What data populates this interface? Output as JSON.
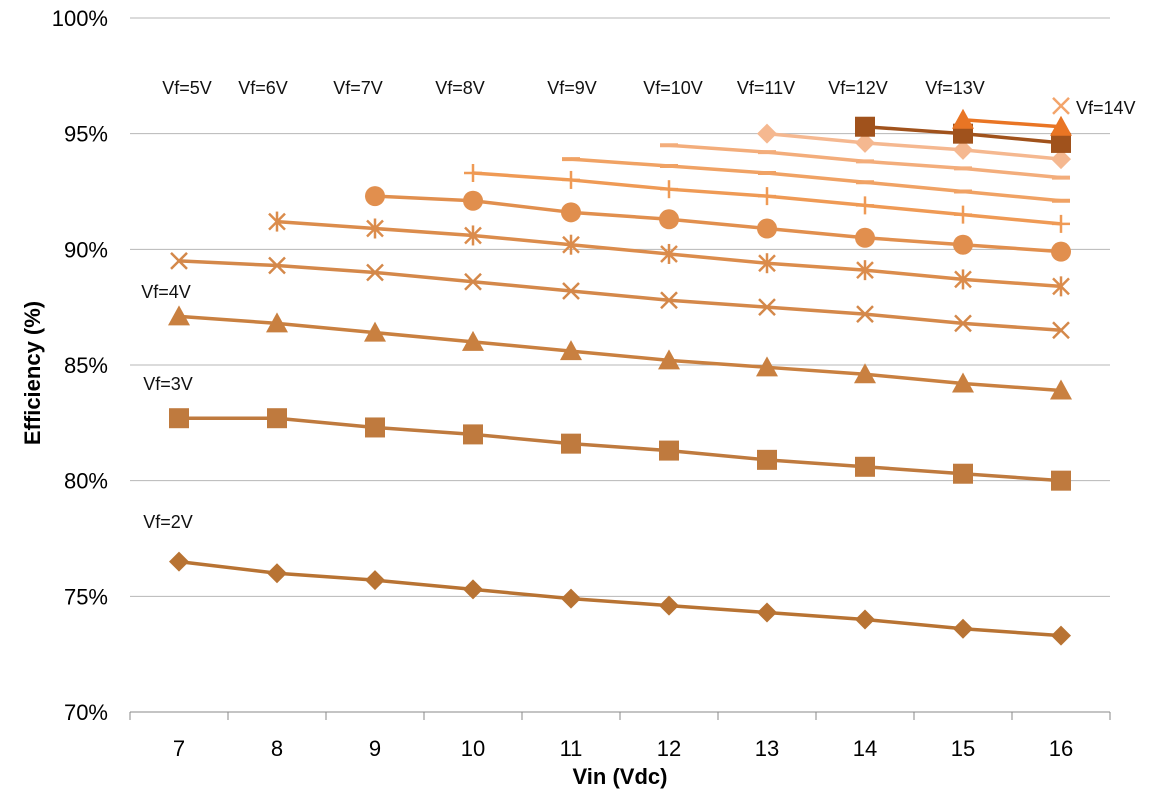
{
  "chart_data": {
    "type": "line",
    "title": "",
    "xlabel": "Vin (Vdc)",
    "ylabel": "Efficiency (%)",
    "x_ticks": [
      "7",
      "8",
      "9",
      "10",
      "11",
      "12",
      "13",
      "14",
      "15",
      "16"
    ],
    "y_ticks": [
      "70%",
      "75%",
      "80%",
      "85%",
      "90%",
      "95%",
      "100%"
    ],
    "xlim": [
      6.5,
      16.5
    ],
    "ylim": [
      70,
      100
    ],
    "grid": "horizontal",
    "legend": "none (series labelled directly on chart)",
    "series": [
      {
        "name": "Vf=2V",
        "marker": "diamond",
        "color": "#b87333",
        "x": [
          7,
          8,
          9,
          10,
          11,
          12,
          13,
          14,
          15,
          16
        ],
        "y": [
          76.5,
          76.0,
          75.7,
          75.3,
          74.9,
          74.6,
          74.3,
          74.0,
          73.6,
          73.3
        ]
      },
      {
        "name": "Vf=3V",
        "marker": "square",
        "color": "#bf7a3e",
        "x": [
          7,
          8,
          9,
          10,
          11,
          12,
          13,
          14,
          15,
          16
        ],
        "y": [
          82.7,
          82.7,
          82.3,
          82.0,
          81.6,
          81.3,
          80.9,
          80.6,
          80.3,
          80.0
        ]
      },
      {
        "name": "Vf=4V",
        "marker": "triangle",
        "color": "#c98040",
        "x": [
          7,
          8,
          9,
          10,
          11,
          12,
          13,
          14,
          15,
          16
        ],
        "y": [
          87.1,
          86.8,
          86.4,
          86.0,
          85.6,
          85.2,
          84.9,
          84.6,
          84.2,
          83.9
        ]
      },
      {
        "name": "Vf=5V",
        "marker": "x",
        "color": "#d4884a",
        "x": [
          7,
          8,
          9,
          10,
          11,
          12,
          13,
          14,
          15,
          16
        ],
        "y": [
          89.5,
          89.3,
          89.0,
          88.6,
          88.2,
          87.8,
          87.5,
          87.2,
          86.8,
          86.5
        ]
      },
      {
        "name": "Vf=6V",
        "marker": "star",
        "color": "#db8c4c",
        "x": [
          8,
          9,
          10,
          11,
          12,
          13,
          14,
          15,
          16
        ],
        "y": [
          91.2,
          90.9,
          90.6,
          90.2,
          89.8,
          89.4,
          89.1,
          88.7,
          88.4
        ]
      },
      {
        "name": "Vf=7V",
        "marker": "circle",
        "color": "#e18f4e",
        "x": [
          9,
          10,
          11,
          12,
          13,
          14,
          15,
          16
        ],
        "y": [
          92.3,
          92.1,
          91.6,
          91.3,
          90.9,
          90.5,
          90.2,
          89.9
        ]
      },
      {
        "name": "Vf=8V",
        "marker": "plus",
        "color": "#ef9a55",
        "x": [
          10,
          11,
          12,
          13,
          14,
          15,
          16
        ],
        "y": [
          93.3,
          93.0,
          92.6,
          92.3,
          91.9,
          91.5,
          91.1
        ]
      },
      {
        "name": "Vf=9V",
        "marker": "dash",
        "color": "#f0a264",
        "x": [
          11,
          12,
          13,
          14,
          15,
          16
        ],
        "y": [
          93.9,
          93.6,
          93.3,
          92.9,
          92.5,
          92.1
        ]
      },
      {
        "name": "Vf=10V",
        "marker": "dash",
        "color": "#f3ad7b",
        "x": [
          12,
          13,
          14,
          15,
          16
        ],
        "y": [
          94.5,
          94.2,
          93.8,
          93.5,
          93.1
        ]
      },
      {
        "name": "Vf=11V",
        "marker": "diamond",
        "color": "#f5b890",
        "x": [
          13,
          14,
          15,
          16
        ],
        "y": [
          95.0,
          94.6,
          94.3,
          93.9
        ]
      },
      {
        "name": "Vf=12V",
        "marker": "square",
        "color": "#a0521c",
        "x": [
          14,
          15,
          16
        ],
        "y": [
          95.3,
          95.0,
          94.6
        ]
      },
      {
        "name": "Vf=13V",
        "marker": "triangle",
        "color": "#e97524",
        "x": [
          15,
          16
        ],
        "y": [
          95.6,
          95.3
        ]
      },
      {
        "name": "Vf=14V",
        "marker": "x",
        "color": "#f3a46a",
        "x": [
          16
        ],
        "y": [
          96.2
        ]
      }
    ]
  }
}
